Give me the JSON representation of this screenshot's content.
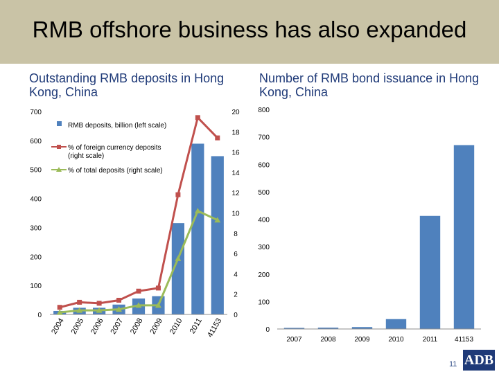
{
  "slide": {
    "title": "RMB offshore business has also expanded",
    "page_number": "11",
    "logo_text": "ADB"
  },
  "chart_data": [
    {
      "type": "bar",
      "title": "Outstanding RMB deposits in Hong Kong, China",
      "categories": [
        "2004",
        "2005",
        "2006",
        "2007",
        "2008",
        "2009",
        "2010",
        "2011",
        "41153"
      ],
      "ylim": [
        0,
        700
      ],
      "y2lim": [
        0,
        20
      ],
      "yticks": [
        0,
        100,
        200,
        300,
        400,
        500,
        600,
        700
      ],
      "y2ticks": [
        0,
        2,
        4,
        6,
        8,
        10,
        12,
        14,
        16,
        18,
        20
      ],
      "legend": [
        "RMB deposits, billion (left scale)",
        "% of foreign currency deposits (right scale)",
        "% of total deposits (right scale)"
      ],
      "series": [
        {
          "name": "RMB deposits, billion (left scale)",
          "kind": "bar",
          "color": "#4f81bd",
          "values": [
            12,
            23,
            23,
            34,
            55,
            63,
            315,
            589,
            546
          ]
        },
        {
          "name": "% of foreign currency deposits (right scale)",
          "kind": "line",
          "color": "#c0504d",
          "values": [
            0.7,
            1.2,
            1.1,
            1.4,
            2.3,
            2.6,
            11.8,
            19.4,
            17.4
          ]
        },
        {
          "name": "% of total deposits (right scale)",
          "kind": "line",
          "color": "#9bbb59",
          "values": [
            0.2,
            0.4,
            0.4,
            0.5,
            0.9,
            0.9,
            5.5,
            10.2,
            9.3
          ]
        }
      ]
    },
    {
      "type": "bar",
      "title": "Number of RMB bond issuance in Hong Kong, China",
      "categories": [
        "2007",
        "2008",
        "2009",
        "2010",
        "2011",
        "41153"
      ],
      "ylim": [
        0,
        800
      ],
      "yticks": [
        0,
        100,
        200,
        300,
        400,
        500,
        600,
        700,
        800
      ],
      "series": [
        {
          "name": "",
          "kind": "bar",
          "color": "#4f81bd",
          "values": [
            4,
            5,
            7,
            36,
            412,
            670
          ]
        }
      ]
    }
  ]
}
